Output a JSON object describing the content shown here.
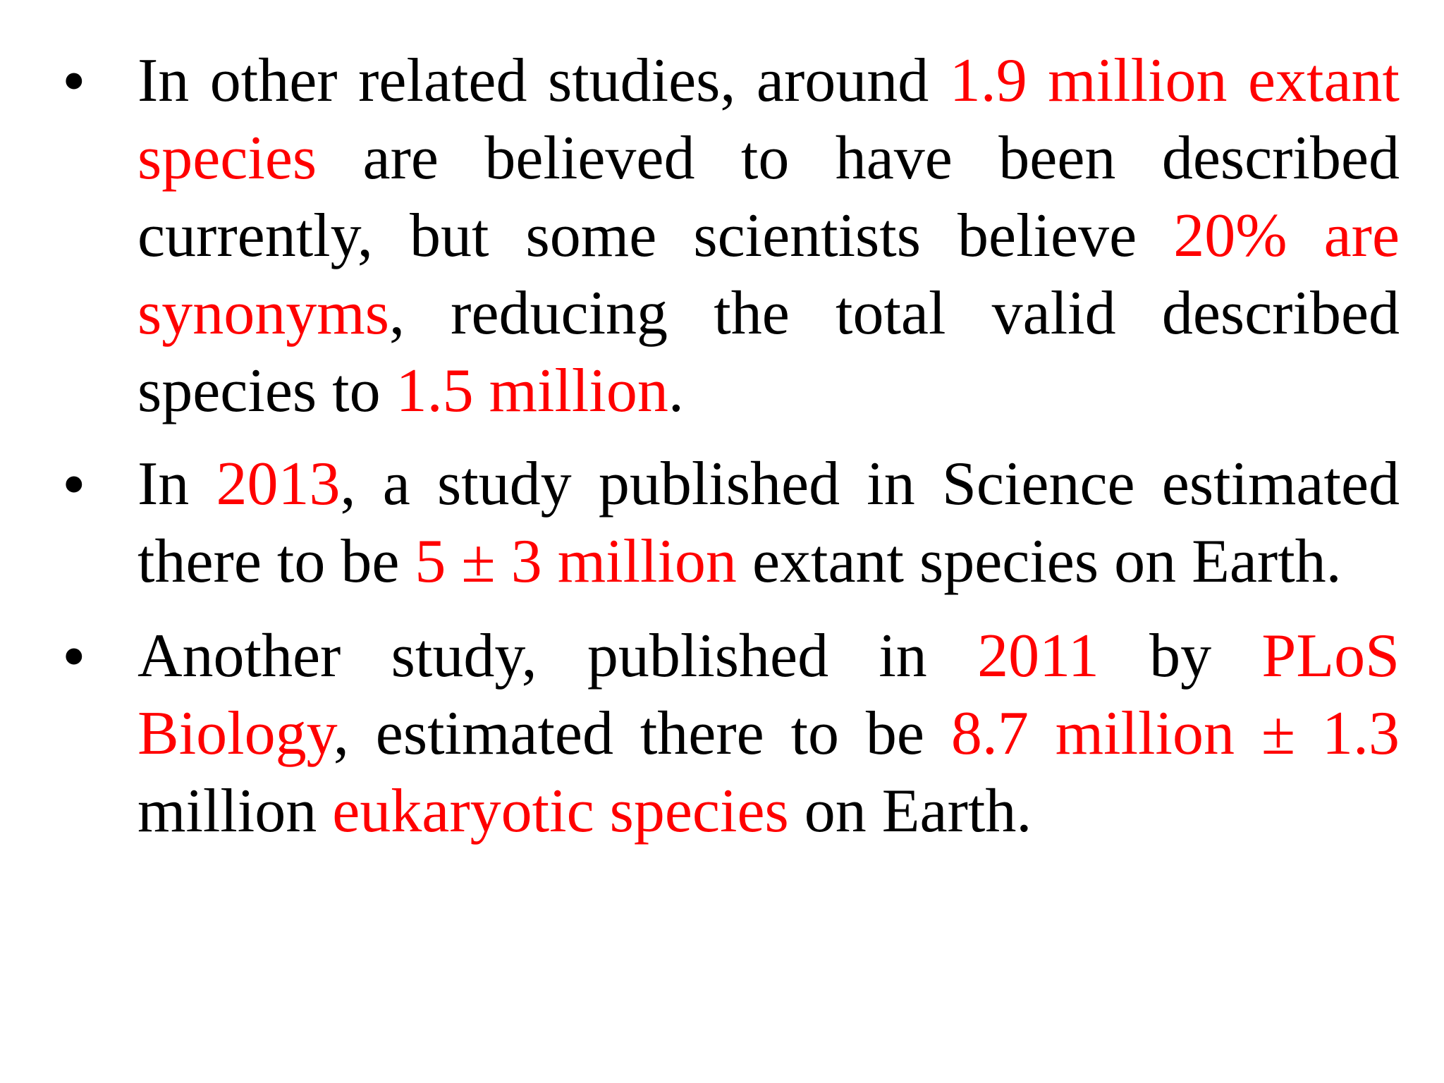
{
  "bullets": [
    {
      "segments": [
        {
          "text": "In other related studies, around ",
          "highlight": false
        },
        {
          "text": "1.9 million extant species",
          "highlight": true
        },
        {
          "text": " are believed to have been described currently, but some scientists believe ",
          "highlight": false
        },
        {
          "text": "20% are synonyms",
          "highlight": true
        },
        {
          "text": ", reducing the total valid described species to ",
          "highlight": false
        },
        {
          "text": "1.5 million",
          "highlight": true
        },
        {
          "text": ".",
          "highlight": false
        }
      ]
    },
    {
      "segments": [
        {
          "text": "In ",
          "highlight": false
        },
        {
          "text": "2013",
          "highlight": true
        },
        {
          "text": ", a study published in Science estimated there to be ",
          "highlight": false
        },
        {
          "text": "5 ± 3 million",
          "highlight": true
        },
        {
          "text": " extant species on Earth.",
          "highlight": false
        }
      ]
    },
    {
      "segments": [
        {
          "text": "Another study, published in ",
          "highlight": false
        },
        {
          "text": "2011",
          "highlight": true
        },
        {
          "text": " by ",
          "highlight": false
        },
        {
          "text": "PLoS Biology",
          "highlight": true
        },
        {
          "text": ", estimated there to be ",
          "highlight": false
        },
        {
          "text": "8.7 million ± 1.3",
          "highlight": true
        },
        {
          "text": " million ",
          "highlight": false
        },
        {
          "text": "eukaryotic species",
          "highlight": true
        },
        {
          "text": " on Earth.",
          "highlight": false
        }
      ]
    }
  ],
  "bullet_symbol": "•",
  "colors": {
    "text": "#000000",
    "highlight": "#ff0000",
    "background": "#ffffff"
  }
}
